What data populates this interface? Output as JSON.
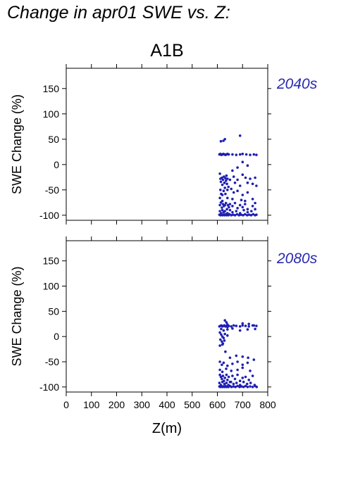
{
  "page": {
    "title": "Change in apr01 SWE vs. Z:",
    "scenario": "A1B",
    "colors": {
      "points": "#1f1fb4",
      "period_label": "#2a2ab0"
    }
  },
  "chart_data": [
    {
      "type": "scatter",
      "period_label": "2040s",
      "ylabel": "SWE Change (%)",
      "xlabel": "",
      "xlim": [
        0,
        800
      ],
      "ylim": [
        -110,
        190
      ],
      "x_ticks": [
        0,
        100,
        200,
        300,
        400,
        500,
        600,
        700,
        800
      ],
      "y_ticks": [
        -100,
        -50,
        0,
        50,
        100,
        150
      ],
      "x_tick_labels_shown": false,
      "grid": false,
      "series": [
        {
          "marker_color": "#1f1fb4",
          "points": [
            [
              614,
              46
            ],
            [
              624,
              47
            ],
            [
              630,
              50
            ],
            [
              690,
              57
            ],
            [
              608,
              20
            ],
            [
              612,
              21
            ],
            [
              616,
              19
            ],
            [
              620,
              20
            ],
            [
              624,
              21
            ],
            [
              628,
              20
            ],
            [
              632,
              19
            ],
            [
              636,
              20
            ],
            [
              640,
              21
            ],
            [
              645,
              20
            ],
            [
              660,
              20
            ],
            [
              675,
              19
            ],
            [
              690,
              20
            ],
            [
              700,
              21
            ],
            [
              715,
              20
            ],
            [
              730,
              19
            ],
            [
              745,
              20
            ],
            [
              755,
              19
            ],
            [
              700,
              5
            ],
            [
              720,
              -2
            ],
            [
              680,
              -6
            ],
            [
              660,
              -12
            ],
            [
              610,
              -18
            ],
            [
              612,
              -28
            ],
            [
              614,
              -34
            ],
            [
              618,
              -26
            ],
            [
              620,
              -40
            ],
            [
              622,
              -30
            ],
            [
              626,
              -24
            ],
            [
              628,
              -36
            ],
            [
              630,
              -46
            ],
            [
              632,
              -27
            ],
            [
              634,
              -32
            ],
            [
              636,
              -22
            ],
            [
              638,
              -38
            ],
            [
              640,
              -28
            ],
            [
              644,
              -44
            ],
            [
              650,
              -30
            ],
            [
              655,
              -48
            ],
            [
              665,
              -24
            ],
            [
              670,
              -36
            ],
            [
              680,
              -30
            ],
            [
              690,
              -42
            ],
            [
              700,
              -20
            ],
            [
              712,
              -26
            ],
            [
              720,
              -36
            ],
            [
              730,
              -28
            ],
            [
              740,
              -38
            ],
            [
              750,
              -26
            ],
            [
              755,
              -42
            ],
            [
              612,
              -50
            ],
            [
              615,
              -58
            ],
            [
              620,
              -60
            ],
            [
              625,
              -52
            ],
            [
              632,
              -58
            ],
            [
              640,
              -50
            ],
            [
              665,
              -55
            ],
            [
              680,
              -52
            ],
            [
              700,
              -60
            ],
            [
              720,
              -55
            ],
            [
              610,
              -66
            ],
            [
              620,
              -72
            ],
            [
              640,
              -66
            ],
            [
              660,
              -68
            ],
            [
              695,
              -70
            ],
            [
              710,
              -72
            ],
            [
              740,
              -68
            ],
            [
              610,
              -80
            ],
            [
              614,
              -75
            ],
            [
              618,
              -85
            ],
            [
              622,
              -78
            ],
            [
              626,
              -82
            ],
            [
              630,
              -80
            ],
            [
              634,
              -76
            ],
            [
              638,
              -88
            ],
            [
              642,
              -80
            ],
            [
              646,
              -84
            ],
            [
              650,
              -78
            ],
            [
              660,
              -82
            ],
            [
              670,
              -76
            ],
            [
              680,
              -86
            ],
            [
              690,
              -80
            ],
            [
              700,
              -84
            ],
            [
              710,
              -78
            ],
            [
              720,
              -88
            ],
            [
              740,
              -82
            ],
            [
              750,
              -76
            ],
            [
              610,
              -92
            ],
            [
              615,
              -96
            ],
            [
              620,
              -90
            ],
            [
              625,
              -94
            ],
            [
              630,
              -92
            ],
            [
              640,
              -96
            ],
            [
              650,
              -90
            ],
            [
              660,
              -94
            ],
            [
              675,
              -92
            ],
            [
              690,
              -96
            ],
            [
              705,
              -90
            ],
            [
              720,
              -94
            ],
            [
              735,
              -92
            ],
            [
              750,
              -88
            ],
            [
              608,
              -99
            ],
            [
              612,
              -100
            ],
            [
              616,
              -98
            ],
            [
              620,
              -100
            ],
            [
              624,
              -99
            ],
            [
              628,
              -100
            ],
            [
              632,
              -98
            ],
            [
              636,
              -100
            ],
            [
              640,
              -99
            ],
            [
              644,
              -100
            ],
            [
              648,
              -98
            ],
            [
              655,
              -100
            ],
            [
              662,
              -99
            ],
            [
              670,
              -100
            ],
            [
              678,
              -98
            ],
            [
              686,
              -100
            ],
            [
              694,
              -99
            ],
            [
              702,
              -100
            ],
            [
              710,
              -98
            ],
            [
              718,
              -100
            ],
            [
              726,
              -99
            ],
            [
              734,
              -100
            ],
            [
              742,
              -98
            ],
            [
              750,
              -100
            ],
            [
              755,
              -99
            ]
          ]
        }
      ]
    },
    {
      "type": "scatter",
      "period_label": "2080s",
      "ylabel": "SWE Change (%)",
      "xlabel": "Z(m)",
      "xlim": [
        0,
        800
      ],
      "ylim": [
        -110,
        190
      ],
      "x_ticks": [
        0,
        100,
        200,
        300,
        400,
        500,
        600,
        700,
        800
      ],
      "y_ticks": [
        -100,
        -50,
        0,
        50,
        100,
        150
      ],
      "x_tick_labels": [
        "0",
        "100",
        "200",
        "300",
        "400",
        "500",
        "600",
        "700",
        "800"
      ],
      "x_tick_labels_shown": true,
      "grid": false,
      "series": [
        {
          "marker_color": "#1f1fb4",
          "points": [
            [
              630,
              32
            ],
            [
              636,
              28
            ],
            [
              640,
              24
            ],
            [
              700,
              26
            ],
            [
              725,
              25
            ],
            [
              745,
              22
            ],
            [
              608,
              20
            ],
            [
              612,
              21
            ],
            [
              616,
              22
            ],
            [
              620,
              20
            ],
            [
              624,
              21
            ],
            [
              628,
              22
            ],
            [
              632,
              20
            ],
            [
              636,
              21
            ],
            [
              640,
              19
            ],
            [
              645,
              21
            ],
            [
              655,
              20
            ],
            [
              665,
              22
            ],
            [
              675,
              21
            ],
            [
              690,
              20
            ],
            [
              700,
              22
            ],
            [
              712,
              21
            ],
            [
              725,
              20
            ],
            [
              740,
              22
            ],
            [
              755,
              21
            ],
            [
              615,
              15
            ],
            [
              625,
              12
            ],
            [
              640,
              14
            ],
            [
              660,
              16
            ],
            [
              690,
              12
            ],
            [
              720,
              14
            ],
            [
              750,
              15
            ],
            [
              610,
              8
            ],
            [
              615,
              4
            ],
            [
              620,
              0
            ],
            [
              625,
              -3
            ],
            [
              630,
              5
            ],
            [
              640,
              2
            ],
            [
              612,
              -6
            ],
            [
              618,
              -10
            ],
            [
              622,
              -14
            ],
            [
              628,
              -8
            ],
            [
              610,
              -18
            ],
            [
              620,
              -16
            ],
            [
              632,
              -30
            ],
            [
              650,
              -42
            ],
            [
              675,
              -38
            ],
            [
              700,
              -40
            ],
            [
              722,
              -42
            ],
            [
              745,
              -46
            ],
            [
              610,
              -50
            ],
            [
              618,
              -56
            ],
            [
              625,
              -52
            ],
            [
              640,
              -58
            ],
            [
              660,
              -54
            ],
            [
              680,
              -50
            ],
            [
              700,
              -56
            ],
            [
              720,
              -52
            ],
            [
              610,
              -66
            ],
            [
              620,
              -70
            ],
            [
              635,
              -64
            ],
            [
              655,
              -68
            ],
            [
              680,
              -66
            ],
            [
              700,
              -62
            ],
            [
              730,
              -68
            ],
            [
              610,
              -76
            ],
            [
              614,
              -80
            ],
            [
              618,
              -84
            ],
            [
              622,
              -78
            ],
            [
              626,
              -88
            ],
            [
              630,
              -82
            ],
            [
              636,
              -76
            ],
            [
              640,
              -86
            ],
            [
              645,
              -80
            ],
            [
              650,
              -90
            ],
            [
              660,
              -78
            ],
            [
              670,
              -84
            ],
            [
              680,
              -76
            ],
            [
              690,
              -88
            ],
            [
              700,
              -82
            ],
            [
              712,
              -80
            ],
            [
              725,
              -86
            ],
            [
              740,
              -78
            ],
            [
              608,
              -92
            ],
            [
              614,
              -96
            ],
            [
              620,
              -90
            ],
            [
              628,
              -94
            ],
            [
              636,
              -92
            ],
            [
              644,
              -96
            ],
            [
              654,
              -90
            ],
            [
              664,
              -94
            ],
            [
              676,
              -92
            ],
            [
              690,
              -96
            ],
            [
              704,
              -90
            ],
            [
              718,
              -94
            ],
            [
              732,
              -92
            ],
            [
              748,
              -96
            ],
            [
              608,
              -99
            ],
            [
              612,
              -100
            ],
            [
              616,
              -98
            ],
            [
              620,
              -100
            ],
            [
              624,
              -99
            ],
            [
              628,
              -100
            ],
            [
              632,
              -98
            ],
            [
              636,
              -100
            ],
            [
              640,
              -99
            ],
            [
              644,
              -100
            ],
            [
              650,
              -98
            ],
            [
              656,
              -100
            ],
            [
              664,
              -99
            ],
            [
              672,
              -100
            ],
            [
              680,
              -98
            ],
            [
              688,
              -100
            ],
            [
              696,
              -99
            ],
            [
              704,
              -100
            ],
            [
              712,
              -98
            ],
            [
              720,
              -100
            ],
            [
              730,
              -99
            ],
            [
              740,
              -100
            ],
            [
              750,
              -98
            ],
            [
              756,
              -100
            ]
          ]
        }
      ]
    }
  ]
}
